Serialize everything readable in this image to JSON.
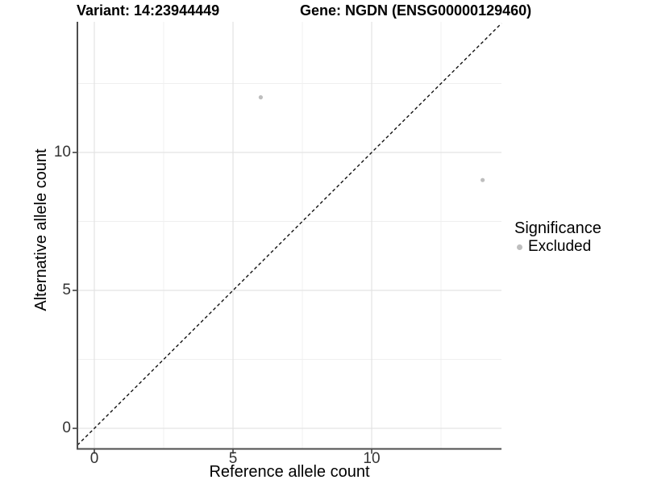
{
  "chart_data": {
    "type": "scatter",
    "title_left": "Variant: 14:23944449",
    "title_right": "Gene: NGDN (ENSG00000129460)",
    "xlabel": "Reference allele count",
    "ylabel": "Alternative allele count",
    "x_ticks": [
      0,
      5,
      10
    ],
    "y_ticks": [
      0,
      5,
      10
    ],
    "minor_ticks": [
      2.5,
      7.5,
      12.5
    ],
    "xlim": [
      -0.7,
      14.7
    ],
    "ylim": [
      -0.7,
      14.7
    ],
    "grid": true,
    "identity_line": {
      "style": "dashed",
      "equation": "y = x"
    },
    "series": [
      {
        "name": "Excluded",
        "color": "#BEBEBE",
        "points": [
          {
            "x": 6,
            "y": 12
          },
          {
            "x": 14,
            "y": 9
          }
        ]
      }
    ],
    "legend": {
      "title": "Significance",
      "position": "right",
      "items": [
        {
          "label": "Excluded",
          "color": "#BEBEBE"
        }
      ]
    }
  },
  "colors": {
    "background": "#FFFFFF",
    "point": "#BEBEBE",
    "grid_major": "#E3E3E3",
    "grid_minor": "#EFEFEF",
    "axis_line": "#4D4D4D",
    "tick_mark": "#333333",
    "identity_line": "#111111",
    "text": "#000000"
  }
}
